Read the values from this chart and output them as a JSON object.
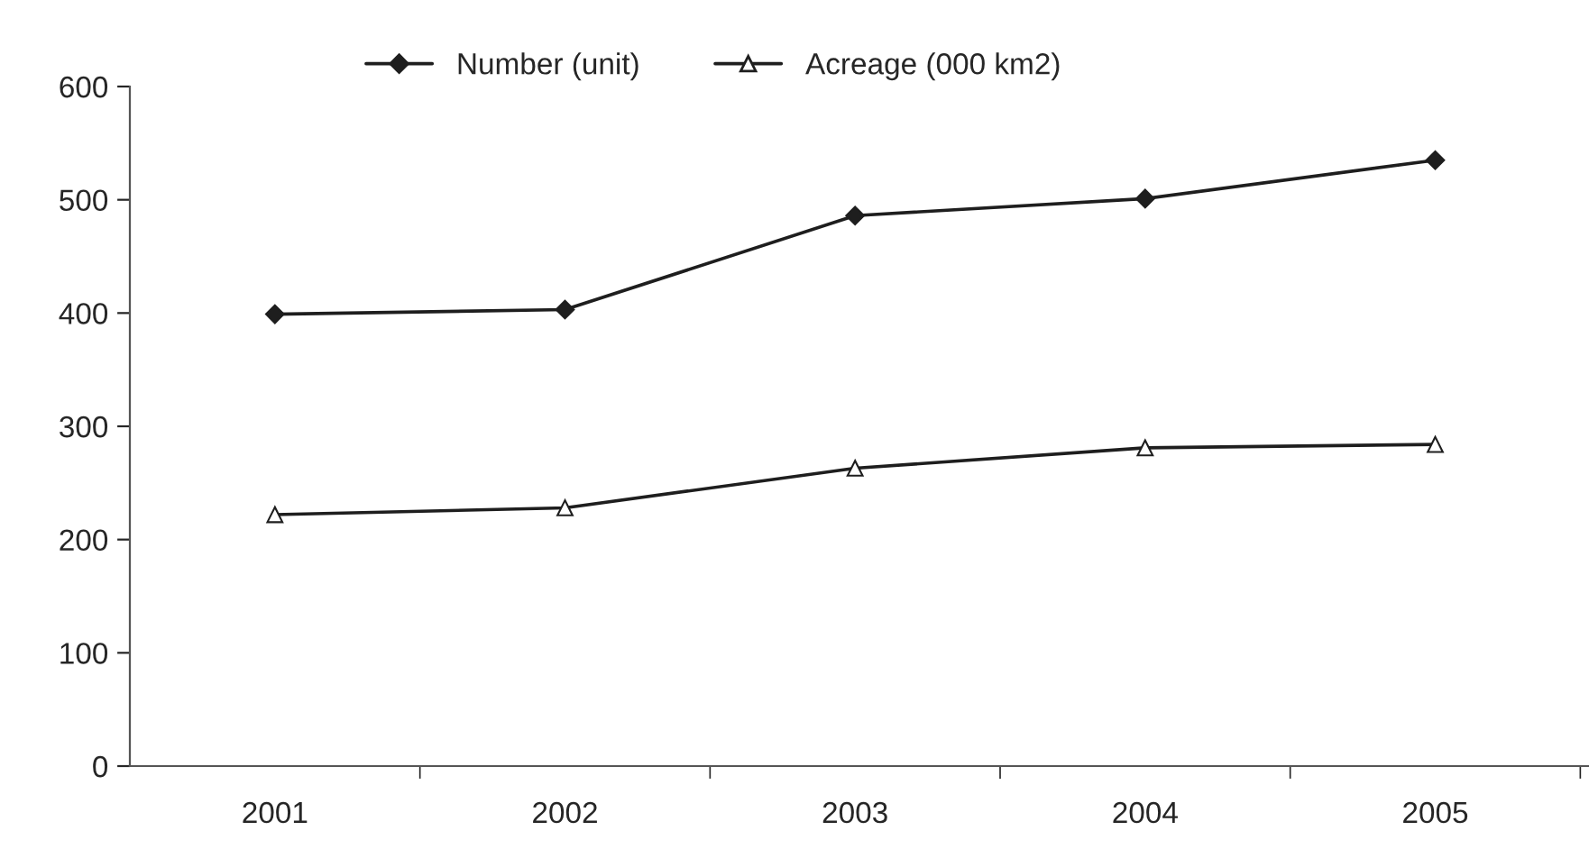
{
  "chart_data": {
    "type": "line",
    "categories": [
      "2001",
      "2002",
      "2003",
      "2004",
      "2005"
    ],
    "series": [
      {
        "name": "Number (unit)",
        "color": "#1e1e1e",
        "marker": "diamond",
        "values": [
          399,
          403,
          486,
          501,
          535
        ]
      },
      {
        "name": "Acreage (000 km2)",
        "color": "#1e1e1e",
        "marker": "triangle",
        "values": [
          222,
          228,
          263,
          281,
          284
        ]
      }
    ],
    "ylim": [
      0,
      600
    ],
    "yticks": [
      0,
      100,
      200,
      300,
      400,
      500,
      600
    ],
    "grid": false,
    "legend": "top",
    "line_style": "solid"
  }
}
